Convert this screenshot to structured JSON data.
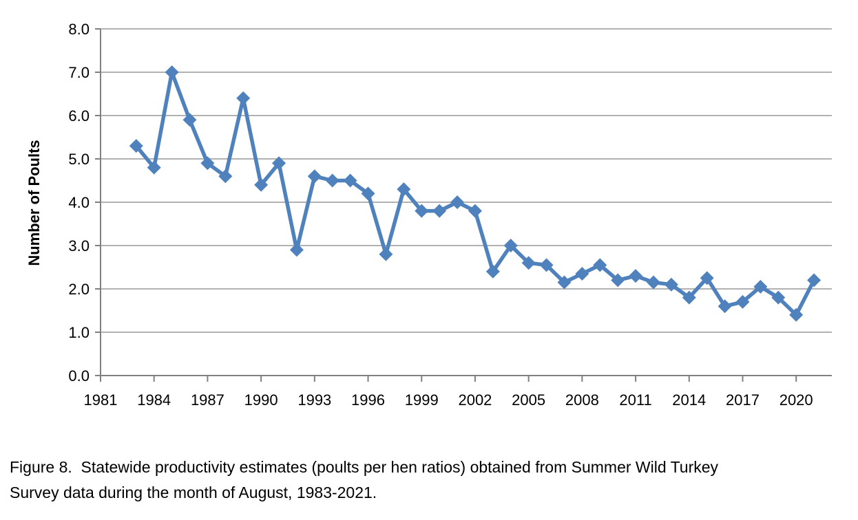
{
  "figure": {
    "caption_lines": [
      "Figure 8.  Statewide productivity estimates (poults per hen ratios) obtained from Summer Wild Turkey",
      "Survey data during the month of August, 1983-2021."
    ]
  },
  "chart_data": {
    "type": "line",
    "title": "",
    "xlabel": "",
    "ylabel": "Number of Poults",
    "series_name": "Poults per hen",
    "x": [
      1983,
      1984,
      1985,
      1986,
      1987,
      1988,
      1989,
      1990,
      1991,
      1992,
      1993,
      1994,
      1995,
      1996,
      1997,
      1998,
      1999,
      2000,
      2001,
      2002,
      2003,
      2004,
      2005,
      2006,
      2007,
      2008,
      2009,
      2010,
      2011,
      2012,
      2013,
      2014,
      2015,
      2016,
      2017,
      2018,
      2019,
      2020,
      2021
    ],
    "values": [
      5.3,
      4.8,
      7.0,
      5.9,
      4.9,
      4.6,
      6.4,
      4.4,
      4.9,
      2.9,
      4.6,
      4.5,
      4.5,
      4.2,
      2.8,
      4.3,
      3.8,
      3.8,
      4.0,
      3.8,
      2.4,
      3.0,
      2.6,
      2.55,
      2.15,
      2.35,
      2.55,
      2.2,
      2.3,
      2.15,
      2.1,
      1.8,
      2.25,
      1.6,
      1.7,
      2.05,
      1.8,
      1.4,
      2.2
    ],
    "ylim": [
      0.0,
      8.0
    ],
    "xlim": [
      1981,
      2022
    ],
    "ytick_labels": [
      "0.0",
      "1.0",
      "2.0",
      "3.0",
      "4.0",
      "5.0",
      "6.0",
      "7.0",
      "8.0"
    ],
    "xtick_labels": [
      "1981",
      "1984",
      "1987",
      "1990",
      "1993",
      "1996",
      "1999",
      "2002",
      "2005",
      "2008",
      "2011",
      "2014",
      "2017",
      "2020"
    ],
    "grid": "horizontal",
    "legend": false,
    "marker": "diamond",
    "line_color": "#4F81BD",
    "gridline_color": "#A6A6A6",
    "axis_color": "#808080",
    "text_color": "#000000"
  }
}
